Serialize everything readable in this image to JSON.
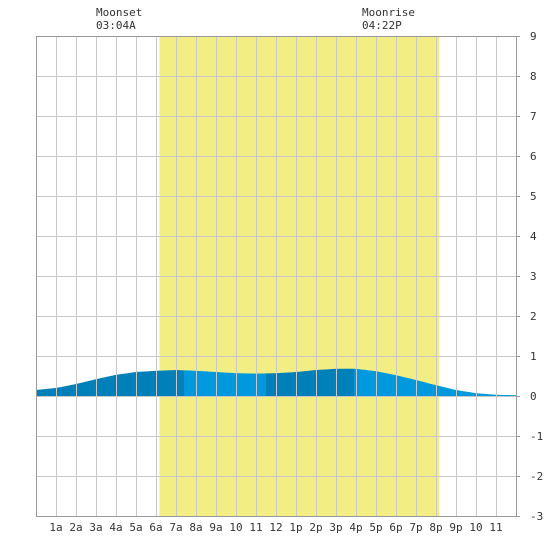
{
  "chart_data": {
    "type": "area",
    "x_unit": "hour of day",
    "x": [
      0,
      1,
      2,
      3,
      4,
      5,
      6,
      7,
      8,
      9,
      10,
      11,
      12,
      13,
      14,
      15,
      16,
      17,
      18,
      19,
      20,
      21,
      22,
      23,
      24
    ],
    "y": [
      0.15,
      0.2,
      0.3,
      0.42,
      0.53,
      0.6,
      0.63,
      0.65,
      0.63,
      0.6,
      0.57,
      0.56,
      0.57,
      0.6,
      0.65,
      0.68,
      0.68,
      0.62,
      0.52,
      0.4,
      0.27,
      0.15,
      0.07,
      0.03,
      0.02
    ],
    "ylim": [
      -3,
      9
    ],
    "xlim": [
      0,
      24
    ],
    "y_ticks": [
      "9",
      "8",
      "7",
      "6",
      "5",
      "4",
      "3",
      "2",
      "1",
      "0",
      "-1",
      "-2",
      "-3"
    ],
    "x_tick_labels": [
      "1a",
      "2a",
      "3a",
      "4a",
      "5a",
      "6a",
      "7a",
      "8a",
      "9a",
      "10",
      "11",
      "12",
      "1p",
      "2p",
      "3p",
      "4p",
      "5p",
      "6p",
      "7p",
      "8p",
      "9p",
      "10",
      "11"
    ],
    "daylight": {
      "start_hour": 6.17,
      "end_hour": 20.17,
      "color": "#f3ee84"
    },
    "fill_dark": "#0080b8",
    "fill_light": "#0099dd",
    "shade_boundaries": [
      7.4,
      11.5,
      15.9
    ],
    "grid": true,
    "y_axis_side": "right"
  },
  "annotations": {
    "moonset": {
      "label": "Moonset",
      "time": "03:04A"
    },
    "moonrise": {
      "label": "Moonrise",
      "time": "04:22P"
    }
  }
}
